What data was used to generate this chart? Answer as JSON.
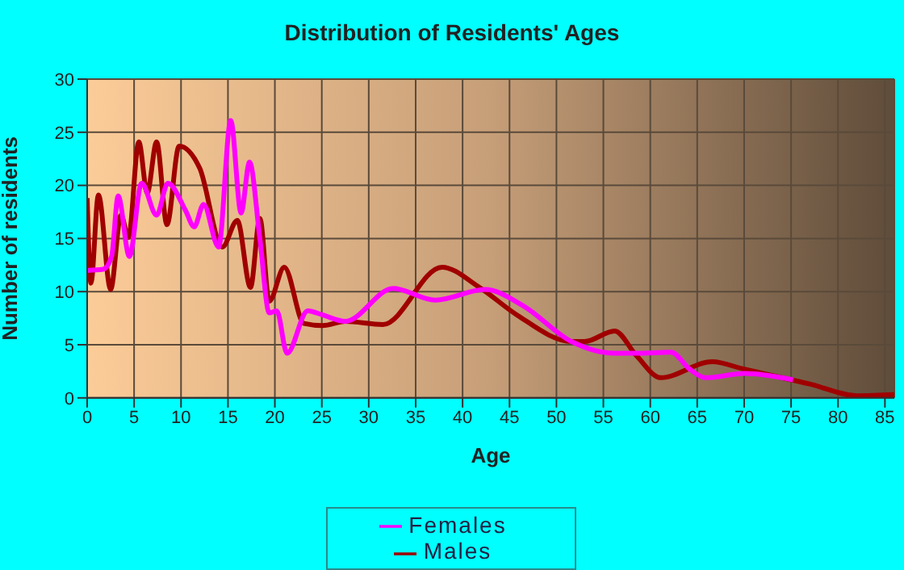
{
  "chart_data": {
    "type": "line",
    "title": "Distribution of Residents' Ages",
    "xlabel": "Age",
    "ylabel": "Number of residents",
    "xlim": [
      0,
      86
    ],
    "xticks": [
      0,
      5,
      10,
      15,
      20,
      25,
      30,
      35,
      40,
      45,
      50,
      55,
      60,
      65,
      70,
      75,
      80,
      85
    ],
    "ylim": [
      0,
      30
    ],
    "yticks": [
      0,
      5,
      10,
      15,
      20,
      25,
      30
    ],
    "grid": true,
    "legend": "bottom",
    "series": [
      {
        "name": "Males",
        "color": "#a00000",
        "x": [
          0,
          0.4,
          1.2,
          2.5,
          3.6,
          4.4,
          5.5,
          6.4,
          7.4,
          8.5,
          9.8,
          12,
          14.4,
          16,
          17.4,
          18.4,
          19.4,
          21,
          23.1,
          25.1,
          27.5,
          31.5,
          37.8,
          41.8,
          45.8,
          51.6,
          53,
          56.2,
          58.5,
          61.1,
          66.6,
          70,
          77,
          82.1,
          86
        ],
        "values": [
          18.8,
          10.8,
          19.1,
          10.2,
          17.2,
          15.1,
          24.1,
          19.3,
          24.1,
          16.3,
          23.7,
          21.6,
          14.2,
          16.7,
          10.4,
          16.9,
          9.1,
          12.3,
          7.0,
          6.8,
          7.2,
          6.9,
          12.3,
          10.4,
          7.8,
          5.3,
          5.3,
          6.3,
          4.0,
          1.9,
          3.4,
          2.7,
          1.3,
          0.2,
          0.3
        ]
      },
      {
        "name": "Females",
        "color": "#ff00ff",
        "x": [
          0,
          1.7,
          2.6,
          3.3,
          4.5,
          5.8,
          7.4,
          8.6,
          10.5,
          11.4,
          12.4,
          14,
          15.3,
          16.4,
          17.3,
          18.4,
          19.4,
          20.2,
          21.3,
          23.5,
          25.1,
          27.5,
          32.6,
          37.1,
          42.4,
          46.4,
          51.6,
          56.2,
          58.5,
          62.2,
          64.2,
          65.9,
          70,
          75.2
        ],
        "values": [
          12.0,
          12.1,
          13.3,
          19.0,
          13.3,
          20.2,
          17.2,
          20.2,
          17.6,
          16.1,
          18.2,
          14.2,
          26.1,
          17.4,
          22.2,
          15.0,
          8.0,
          8.2,
          4.2,
          8.2,
          7.8,
          7.2,
          10.3,
          9.2,
          10.2,
          8.7,
          5.3,
          4.2,
          4.2,
          4.3,
          2.7,
          1.9,
          2.3,
          1.7
        ]
      }
    ]
  }
}
